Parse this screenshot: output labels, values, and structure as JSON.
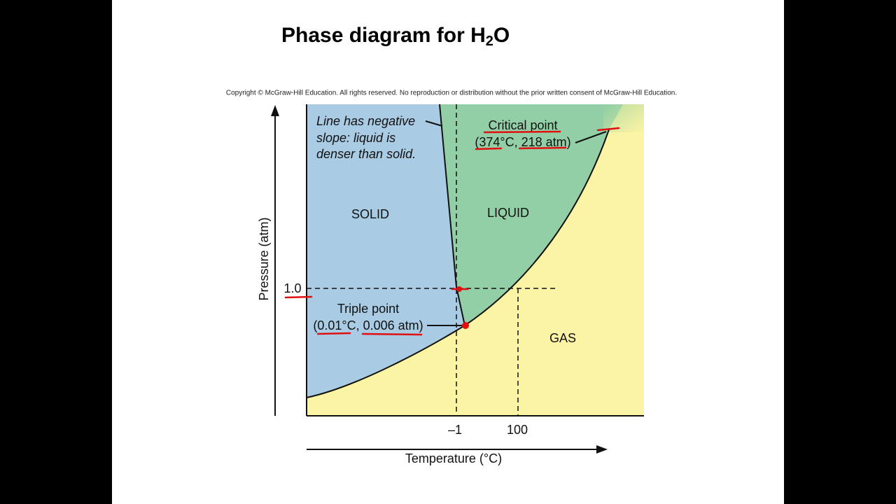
{
  "title": {
    "main": "Phase diagram for H",
    "subscript": "2",
    "end": "O"
  },
  "copyright": "Copyright © McGraw-Hill Education.  All rights reserved. No reproduction or distribution without the prior written consent of McGraw-Hill Education.",
  "note": {
    "lines": [
      "Line has negative",
      "slope: liquid is",
      "denser than solid."
    ]
  },
  "regions": {
    "solid": "SOLID",
    "liquid": "LIQUID",
    "gas": "GAS"
  },
  "critical_point": {
    "label": "Critical point",
    "coords": "(374°C, 218 atm)"
  },
  "triple_point": {
    "label": "Triple point",
    "coords": "(0.01°C, 0.006 atm)"
  },
  "y_axis": {
    "label": "Pressure (atm)",
    "tick": "1.0"
  },
  "x_axis": {
    "label": "Temperature (°C)",
    "ticks": [
      "–1",
      "100"
    ]
  }
}
